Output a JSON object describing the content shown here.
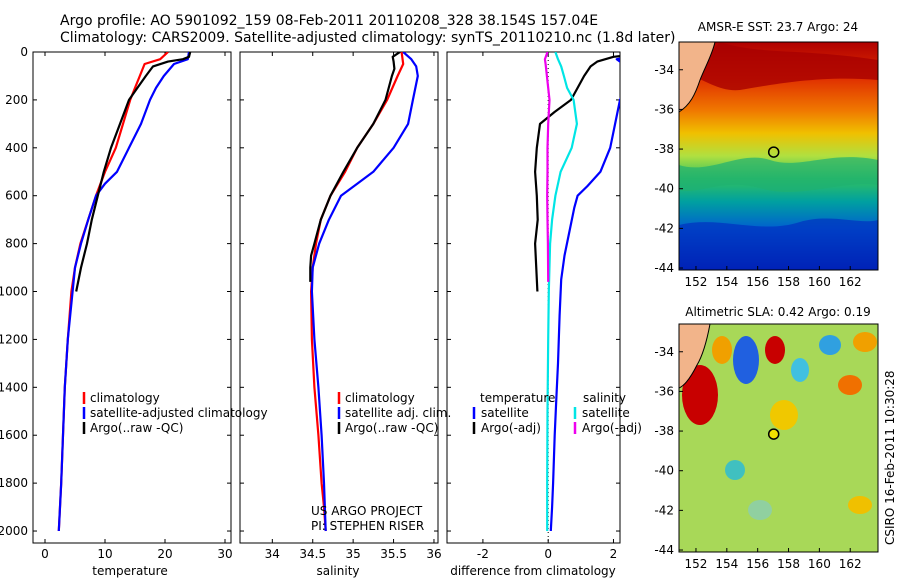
{
  "header": {
    "line1": "Argo profile: AO 5901092_159 08-Feb-2011 20110208_328 38.154S 157.04E",
    "line2": "Climatology: CARS2009. Satellite-adjusted climatology: synTS_20110210.nc (1.8d later)"
  },
  "colors": {
    "climatology": "#ff0000",
    "satellite": "#0000ff",
    "argo": "#000000",
    "sal_satellite": "#00e5e5",
    "sal_argo": "#ee00ee",
    "land": "#f2b48a"
  },
  "depth_ticks": [
    "0",
    "200",
    "400",
    "600",
    "800",
    "1000",
    "1200",
    "1400",
    "1600",
    "1800",
    "2000"
  ],
  "chart_data": [
    {
      "type": "line",
      "xlabel": "temperature",
      "xticks": [
        "0",
        "10",
        "20",
        "30"
      ],
      "xlim": [
        -2,
        31
      ],
      "ylim": [
        2050,
        0
      ],
      "series": [
        {
          "name": "climatology",
          "color": "#ff0000",
          "x": [
            20.5,
            19.2,
            16.6,
            15.8,
            15.0,
            14.2,
            13.0,
            11.8,
            10.0,
            8.5,
            7.2,
            5.9,
            5.0,
            4.4,
            3.8,
            3.3,
            3.0,
            2.7,
            2.5,
            2.3
          ],
          "y": [
            0,
            30,
            50,
            100,
            150,
            200,
            300,
            400,
            500,
            600,
            700,
            800,
            900,
            1000,
            1200,
            1400,
            1600,
            1800,
            1900,
            2000
          ]
        },
        {
          "name": "satellite-adjusted climatology",
          "color": "#0000ff",
          "x": [
            24.0,
            23.8,
            21.5,
            19.8,
            18.5,
            17.5,
            16.0,
            14.0,
            12.0,
            10.0,
            8.5,
            7.2,
            6.0,
            5.0,
            3.8,
            3.3,
            3.0,
            2.7,
            2.5,
            2.3
          ],
          "y": [
            0,
            30,
            50,
            100,
            150,
            200,
            300,
            400,
            500,
            550,
            600,
            700,
            800,
            900,
            1200,
            1400,
            1600,
            1800,
            1900,
            2000
          ]
        },
        {
          "name": "Argo(..raw -QC)",
          "color": "#000000",
          "x": [
            24.2,
            24.0,
            23.0,
            20.5,
            18.0,
            16.8,
            15.4,
            14.0,
            12.5,
            11.0,
            9.8,
            8.8,
            7.8,
            7.0,
            6.0,
            5.2
          ],
          "y": [
            0,
            20,
            30,
            40,
            60,
            100,
            150,
            200,
            300,
            400,
            500,
            600,
            700,
            800,
            900,
            1000
          ]
        }
      ],
      "legend": {
        "placement": "lower-right",
        "items": [
          "climatology",
          "satellite-adjusted climatology",
          "Argo(..raw -QC)"
        ]
      }
    },
    {
      "type": "line",
      "xlabel": "salinity",
      "xticks": [
        "34",
        "34.5",
        "35",
        "35.5",
        "36"
      ],
      "xlim": [
        33.6,
        36.05
      ],
      "ylim": [
        2050,
        0
      ],
      "series": [
        {
          "name": "climatology",
          "color": "#ff0000",
          "x": [
            35.6,
            35.62,
            35.55,
            35.42,
            35.25,
            35.05,
            34.9,
            34.72,
            34.6,
            34.54,
            34.5,
            34.48,
            34.49,
            34.52,
            34.57,
            34.61,
            34.64,
            34.66
          ],
          "y": [
            0,
            50,
            100,
            200,
            300,
            400,
            500,
            600,
            700,
            800,
            900,
            1000,
            1200,
            1400,
            1600,
            1800,
            1900,
            2000
          ]
        },
        {
          "name": "satellite adj. clim.",
          "color": "#0000ff",
          "x": [
            35.62,
            35.72,
            35.78,
            35.8,
            35.74,
            35.68,
            35.5,
            35.25,
            35.05,
            34.85,
            34.7,
            34.58,
            34.5,
            34.49,
            34.52,
            34.57,
            34.61,
            34.64,
            34.66
          ],
          "y": [
            0,
            30,
            60,
            100,
            200,
            300,
            400,
            500,
            550,
            600,
            700,
            800,
            900,
            1000,
            1200,
            1400,
            1600,
            1800,
            2000
          ]
        },
        {
          "name": "Argo(..raw -QC)",
          "color": "#000000",
          "x": [
            35.58,
            35.49,
            35.5,
            35.51,
            35.48,
            35.4,
            35.25,
            35.05,
            34.88,
            34.72,
            34.6,
            34.52,
            34.48,
            34.47,
            34.47
          ],
          "y": [
            0,
            20,
            40,
            70,
            100,
            200,
            300,
            400,
            500,
            600,
            700,
            800,
            850,
            900,
            960
          ]
        }
      ],
      "legend": {
        "placement": "lower-right",
        "items": [
          "climatology",
          "satellite adj. clim.",
          "Argo(..raw -QC)"
        ]
      },
      "annotation": [
        "US ARGO PROJECT",
        "PI: STEPHEN RISER"
      ]
    },
    {
      "type": "line",
      "xlabel": "difference from climatology",
      "xticks": [
        "-2",
        "0",
        "2"
      ],
      "xlim": [
        -3.1,
        2.2
      ],
      "ylim": [
        2050,
        0
      ],
      "zero_line": "dotted",
      "series": [
        {
          "name": "temperature satellite",
          "color": "#0000ff",
          "x": [
            3.3,
            2.1,
            2.3,
            2.6,
            2.2,
            2.05,
            1.9,
            1.6,
            1.2,
            0.9,
            0.8,
            0.65,
            0.5,
            0.4,
            0.35,
            0.3,
            0.25,
            0.2,
            0.15,
            0.12,
            0.08
          ],
          "y": [
            0,
            30,
            50,
            90,
            200,
            300,
            400,
            500,
            560,
            600,
            650,
            750,
            850,
            950,
            1100,
            1300,
            1450,
            1600,
            1800,
            1900,
            2000
          ]
        },
        {
          "name": "temperature Argo(-adj)",
          "color": "#000000",
          "x": [
            3.5,
            2.0,
            1.5,
            1.3,
            1.1,
            0.9,
            0.7,
            0.2,
            -0.25,
            -0.35,
            -0.4,
            -0.35,
            -0.32,
            -0.4,
            -0.33
          ],
          "y": [
            0,
            20,
            40,
            60,
            100,
            150,
            200,
            250,
            300,
            400,
            500,
            600,
            700,
            800,
            1000
          ]
        },
        {
          "name": "salinity satellite",
          "color": "#00e5e5",
          "x": [
            0.22,
            0.3,
            0.4,
            0.48,
            0.58,
            0.78,
            0.88,
            0.72,
            0.38,
            0.22,
            0.12,
            0.06,
            0.02,
            0.0,
            -0.02,
            -0.03,
            -0.03
          ],
          "y": [
            0,
            30,
            60,
            100,
            150,
            200,
            300,
            400,
            500,
            600,
            700,
            800,
            1000,
            1200,
            1500,
            1800,
            2000
          ]
        },
        {
          "name": "salinity Argo(-adj)",
          "color": "#ee00ee",
          "x": [
            -0.02,
            -0.1,
            -0.08,
            -0.04,
            0.04,
            0.0,
            -0.02,
            -0.02,
            -0.03,
            -0.02,
            -0.01,
            0.0
          ],
          "y": [
            0,
            30,
            50,
            100,
            200,
            300,
            400,
            500,
            600,
            700,
            800,
            960
          ]
        }
      ],
      "legend": {
        "placement": "lower-right",
        "groups": [
          "temperature",
          "salinity"
        ],
        "items": [
          "satellite",
          "Argo(-adj)",
          "satellite",
          "Argo(-adj)"
        ]
      }
    }
  ],
  "maps": [
    {
      "title": "AMSR-E SST: 23.7  Argo: 24",
      "xticks": [
        "152",
        "154",
        "156",
        "158",
        "160",
        "162"
      ],
      "yticks": [
        "-34",
        "-36",
        "-38",
        "-40",
        "-42",
        "-44"
      ],
      "float_lon": 157.04,
      "float_lat": -38.154
    },
    {
      "title": "Altimetric SLA: 0.42  Argo: 0.19",
      "xticks": [
        "152",
        "154",
        "156",
        "158",
        "160",
        "162"
      ],
      "yticks": [
        "-34",
        "-36",
        "-38",
        "-40",
        "-42",
        "-44"
      ],
      "float_lon": 157.04,
      "float_lat": -38.154
    }
  ],
  "stamp": "CSIRO 16-Feb-2011 10:30:28"
}
